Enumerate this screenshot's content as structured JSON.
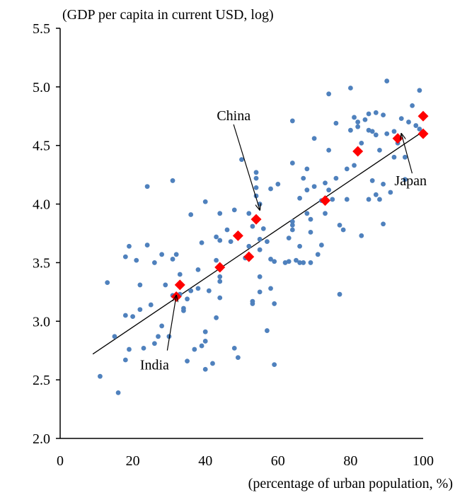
{
  "chart_data": {
    "type": "scatter",
    "ylabel": "(GDP per capita in current USD, log)",
    "xlabel": "(percentage of urban population, %)",
    "xlim": [
      0,
      100
    ],
    "ylim": [
      2.0,
      5.5
    ],
    "xticks": [
      "0",
      "20",
      "40",
      "60",
      "80",
      "100"
    ],
    "yticks": [
      "2.0",
      "2.5",
      "3.0",
      "3.5",
      "4.0",
      "4.5",
      "5.0",
      "5.5"
    ],
    "grid": false,
    "colors": {
      "countries": "#4f81bd",
      "highlighted": "#ff0000",
      "trend": "#000000"
    },
    "trendline": {
      "x": [
        9,
        100
      ],
      "y": [
        2.72,
        4.62
      ]
    },
    "series": [
      {
        "points": [
          [
            11,
            2.53
          ],
          [
            13,
            3.33
          ],
          [
            15,
            2.87
          ],
          [
            16,
            2.39
          ],
          [
            18,
            3.05
          ],
          [
            18,
            2.67
          ],
          [
            19,
            3.64
          ],
          [
            18,
            3.55
          ],
          [
            19,
            2.76
          ],
          [
            20,
            3.04
          ],
          [
            21,
            3.52
          ],
          [
            22,
            3.31
          ],
          [
            22,
            3.1
          ],
          [
            23,
            2.77
          ],
          [
            24,
            3.65
          ],
          [
            24,
            4.15
          ],
          [
            25,
            3.14
          ],
          [
            26,
            3.5
          ],
          [
            26,
            2.81
          ],
          [
            27,
            2.87
          ],
          [
            28,
            2.96
          ],
          [
            28,
            3.57
          ],
          [
            29,
            3.31
          ],
          [
            30,
            2.87
          ],
          [
            31,
            3.53
          ],
          [
            31,
            3.22
          ],
          [
            31,
            4.2
          ],
          [
            32,
            3.57
          ],
          [
            33,
            3.23
          ],
          [
            33,
            3.4
          ],
          [
            34,
            3.11
          ],
          [
            34,
            3.09
          ],
          [
            35,
            3.19
          ],
          [
            35,
            2.66
          ],
          [
            36,
            3.91
          ],
          [
            36,
            3.26
          ],
          [
            37,
            2.76
          ],
          [
            38,
            3.44
          ],
          [
            38,
            3.28
          ],
          [
            39,
            2.79
          ],
          [
            39,
            3.67
          ],
          [
            40,
            2.83
          ],
          [
            40,
            2.91
          ],
          [
            40,
            2.59
          ],
          [
            40,
            4.02
          ],
          [
            41,
            3.26
          ],
          [
            42,
            2.64
          ],
          [
            43,
            3.52
          ],
          [
            43,
            3.72
          ],
          [
            43,
            3.03
          ],
          [
            44,
            3.2
          ],
          [
            44,
            3.38
          ],
          [
            44,
            3.92
          ],
          [
            44,
            3.69
          ],
          [
            44,
            3.34
          ],
          [
            46,
            3.78
          ],
          [
            47,
            3.68
          ],
          [
            48,
            3.95
          ],
          [
            48,
            2.77
          ],
          [
            49,
            2.69
          ],
          [
            50,
            4.38
          ],
          [
            51,
            3.54
          ],
          [
            52,
            3.64
          ],
          [
            52,
            3.92
          ],
          [
            53,
            3.81
          ],
          [
            53,
            3.17
          ],
          [
            53,
            3.15
          ],
          [
            54,
            4.27
          ],
          [
            54,
            4.22
          ],
          [
            54,
            4.14
          ],
          [
            54,
            4.07
          ],
          [
            55,
            4.0
          ],
          [
            55,
            3.7
          ],
          [
            55,
            3.61
          ],
          [
            55,
            3.38
          ],
          [
            55,
            3.25
          ],
          [
            56,
            3.79
          ],
          [
            57,
            3.68
          ],
          [
            57,
            2.92
          ],
          [
            58,
            3.28
          ],
          [
            58,
            3.53
          ],
          [
            58,
            4.13
          ],
          [
            59,
            3.15
          ],
          [
            59,
            2.63
          ],
          [
            59,
            3.51
          ],
          [
            60,
            4.17
          ],
          [
            62,
            3.5
          ],
          [
            63,
            3.71
          ],
          [
            63,
            3.51
          ],
          [
            64,
            3.82
          ],
          [
            64,
            4.35
          ],
          [
            64,
            4.71
          ],
          [
            64,
            3.85
          ],
          [
            64,
            3.78
          ],
          [
            65,
            3.52
          ],
          [
            66,
            3.64
          ],
          [
            66,
            3.5
          ],
          [
            66,
            4.05
          ],
          [
            67,
            4.22
          ],
          [
            67,
            3.5
          ],
          [
            68,
            4.3
          ],
          [
            68,
            4.12
          ],
          [
            68,
            3.92
          ],
          [
            69,
            3.87
          ],
          [
            69,
            3.5
          ],
          [
            69,
            3.76
          ],
          [
            70,
            4.56
          ],
          [
            70,
            4.15
          ],
          [
            71,
            3.57
          ],
          [
            72,
            4.03
          ],
          [
            72,
            3.65
          ],
          [
            73,
            4.18
          ],
          [
            73,
            3.92
          ],
          [
            74,
            4.94
          ],
          [
            74,
            4.46
          ],
          [
            74,
            4.12
          ],
          [
            75,
            4.04
          ],
          [
            76,
            4.69
          ],
          [
            76,
            4.22
          ],
          [
            77,
            3.82
          ],
          [
            77,
            3.23
          ],
          [
            78,
            3.78
          ],
          [
            79,
            4.3
          ],
          [
            79,
            4.04
          ],
          [
            80,
            4.99
          ],
          [
            80,
            4.63
          ],
          [
            81,
            4.74
          ],
          [
            81,
            4.33
          ],
          [
            82,
            4.7
          ],
          [
            82,
            4.66
          ],
          [
            83,
            4.52
          ],
          [
            83,
            3.73
          ],
          [
            84,
            4.72
          ],
          [
            85,
            4.77
          ],
          [
            85,
            4.63
          ],
          [
            85,
            4.04
          ],
          [
            86,
            4.62
          ],
          [
            86,
            4.2
          ],
          [
            87,
            4.78
          ],
          [
            87,
            4.59
          ],
          [
            87,
            4.08
          ],
          [
            88,
            4.46
          ],
          [
            88,
            4.04
          ],
          [
            89,
            4.76
          ],
          [
            89,
            4.17
          ],
          [
            89,
            3.83
          ],
          [
            90,
            4.6
          ],
          [
            90,
            5.05
          ],
          [
            91,
            4.1
          ],
          [
            92,
            4.62
          ],
          [
            92,
            4.4
          ],
          [
            93,
            4.52
          ],
          [
            94,
            4.73
          ],
          [
            95,
            4.21
          ],
          [
            95,
            4.4
          ],
          [
            96,
            4.7
          ],
          [
            97,
            4.84
          ],
          [
            98,
            4.67
          ],
          [
            99,
            4.97
          ],
          [
            99,
            4.64
          ]
        ]
      },
      {
        "points": [
          [
            32,
            3.21
          ],
          [
            33,
            3.31
          ],
          [
            44,
            3.46
          ],
          [
            49,
            3.73
          ],
          [
            52,
            3.55
          ],
          [
            54,
            3.87
          ],
          [
            73,
            4.03
          ],
          [
            82,
            4.45
          ],
          [
            93,
            4.56
          ],
          [
            100,
            4.75
          ],
          [
            100,
            4.6
          ]
        ]
      }
    ],
    "annotations": [
      {
        "text": "China",
        "point": [
          55,
          3.95
        ],
        "label_at": [
          47,
          4.45
        ]
      },
      {
        "text": "Japan",
        "point": [
          94,
          4.6
        ],
        "label_at": [
          99.5,
          4.22
        ]
      },
      {
        "text": "India",
        "point": [
          32,
          3.22
        ],
        "label_at": [
          26,
          2.63
        ]
      }
    ]
  }
}
